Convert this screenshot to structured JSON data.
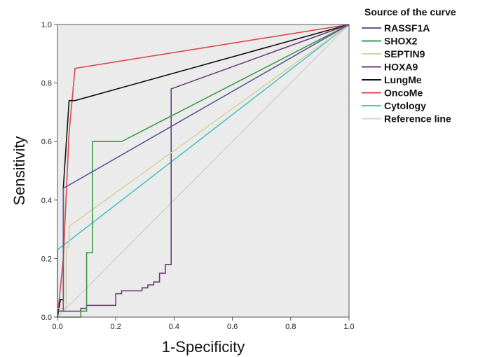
{
  "chart_data": {
    "type": "line",
    "xlabel": "1-Specificity",
    "ylabel": "Sensitivity",
    "xlim": [
      0,
      1
    ],
    "ylim": [
      0,
      1
    ],
    "x_ticks": [
      "0.0",
      "0.2",
      "0.4",
      "0.6",
      "0.8",
      "1.0"
    ],
    "y_ticks": [
      "0.0",
      "0.2",
      "0.4",
      "0.6",
      "0.8",
      "1.0"
    ],
    "grid": false,
    "plot_background": "#ebebeb",
    "legend": {
      "title": "Source of the curve",
      "placement": "right-top"
    },
    "series": [
      {
        "name": "RASSF1A",
        "color": "#5a5a9c",
        "points": [
          [
            0,
            0
          ],
          [
            0,
            0.02
          ],
          [
            0.02,
            0.02
          ],
          [
            0.02,
            0.44
          ],
          [
            1,
            1
          ]
        ]
      },
      {
        "name": "SHOX2",
        "color": "#3f9a4a",
        "points": [
          [
            0,
            0
          ],
          [
            0.08,
            0
          ],
          [
            0.08,
            0.02
          ],
          [
            0.1,
            0.02
          ],
          [
            0.1,
            0.22
          ],
          [
            0.12,
            0.22
          ],
          [
            0.12,
            0.6
          ],
          [
            0.22,
            0.6
          ],
          [
            1,
            1
          ]
        ]
      },
      {
        "name": "SEPTIN9",
        "color": "#d8d2a0",
        "points": [
          [
            0,
            0
          ],
          [
            0,
            0.03
          ],
          [
            0.03,
            0.03
          ],
          [
            0.03,
            0.24
          ],
          [
            0.04,
            0.24
          ],
          [
            0.04,
            0.31
          ],
          [
            1,
            1
          ]
        ]
      },
      {
        "name": "HOXA9",
        "color": "#6a3f7a",
        "points": [
          [
            0,
            0
          ],
          [
            0,
            0.02
          ],
          [
            0.08,
            0.02
          ],
          [
            0.08,
            0.03
          ],
          [
            0.1,
            0.03
          ],
          [
            0.1,
            0.04
          ],
          [
            0.2,
            0.04
          ],
          [
            0.2,
            0.08
          ],
          [
            0.22,
            0.08
          ],
          [
            0.22,
            0.09
          ],
          [
            0.29,
            0.09
          ],
          [
            0.29,
            0.1
          ],
          [
            0.31,
            0.1
          ],
          [
            0.31,
            0.11
          ],
          [
            0.33,
            0.11
          ],
          [
            0.33,
            0.12
          ],
          [
            0.35,
            0.12
          ],
          [
            0.35,
            0.15
          ],
          [
            0.37,
            0.15
          ],
          [
            0.37,
            0.18
          ],
          [
            0.39,
            0.18
          ],
          [
            0.39,
            0.78
          ],
          [
            1,
            1
          ]
        ]
      },
      {
        "name": "LungMe",
        "color": "#111111",
        "points": [
          [
            0,
            0
          ],
          [
            0.01,
            0.06
          ],
          [
            0.02,
            0.06
          ],
          [
            0.02,
            0.44
          ],
          [
            0.04,
            0.74
          ],
          [
            0.06,
            0.74
          ],
          [
            1,
            1
          ]
        ]
      },
      {
        "name": "OncoMe",
        "color": "#d94848",
        "points": [
          [
            0,
            0
          ],
          [
            0.02,
            0.2
          ],
          [
            0.04,
            0.63
          ],
          [
            0.06,
            0.85
          ],
          [
            1,
            1
          ]
        ]
      },
      {
        "name": "Cytology",
        "color": "#4fc3c3",
        "points": [
          [
            0,
            0
          ],
          [
            0,
            0.23
          ],
          [
            1,
            1
          ]
        ]
      },
      {
        "name": "Reference line",
        "color": "#d4d4d4",
        "points": [
          [
            0,
            0
          ],
          [
            1,
            1
          ]
        ]
      }
    ]
  }
}
